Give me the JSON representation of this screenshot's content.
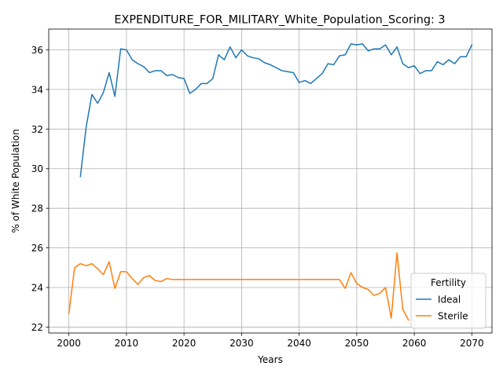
{
  "chart_data": {
    "type": "line",
    "title": "EXPENDITURE_FOR_MILITARY_White_Population_Scoring: 3",
    "xlabel": "Years",
    "ylabel": "% of White Population",
    "xlim": [
      1996.5,
      2073.5
    ],
    "ylim": [
      21.7,
      37.05
    ],
    "x_ticks": [
      2000,
      2010,
      2020,
      2030,
      2040,
      2050,
      2060,
      2070
    ],
    "y_ticks": [
      22,
      24,
      26,
      28,
      30,
      32,
      34,
      36
    ],
    "grid": true,
    "legend": {
      "title": "Fertility",
      "placement": "lower-right"
    },
    "series": [
      {
        "name": "Ideal",
        "color": "#1f77b4",
        "x": [
          2002,
          2003,
          2004,
          2005,
          2006,
          2007,
          2008,
          2009,
          2010,
          2011,
          2012,
          2013,
          2014,
          2015,
          2016,
          2017,
          2018,
          2019,
          2020,
          2021,
          2022,
          2023,
          2024,
          2025,
          2026,
          2027,
          2028,
          2029,
          2030,
          2031,
          2032,
          2033,
          2034,
          2035,
          2036,
          2037,
          2038,
          2039,
          2040,
          2041,
          2042,
          2043,
          2044,
          2045,
          2046,
          2047,
          2048,
          2049,
          2050,
          2051,
          2052,
          2053,
          2054,
          2055,
          2056,
          2057,
          2058,
          2059,
          2060,
          2061,
          2062,
          2063,
          2064,
          2065,
          2066,
          2067,
          2068,
          2069,
          2070
        ],
        "values": [
          29.6,
          32.1,
          33.75,
          33.3,
          33.85,
          34.85,
          33.65,
          36.05,
          36.0,
          35.5,
          35.3,
          35.15,
          34.85,
          34.95,
          34.95,
          34.7,
          34.75,
          34.6,
          34.55,
          33.8,
          34.0,
          34.3,
          34.3,
          34.55,
          35.75,
          35.5,
          36.15,
          35.6,
          36.0,
          35.7,
          35.6,
          35.55,
          35.35,
          35.25,
          35.1,
          34.95,
          34.9,
          34.85,
          34.35,
          34.45,
          34.3,
          34.55,
          34.8,
          35.3,
          35.25,
          35.7,
          35.75,
          36.3,
          36.25,
          36.3,
          35.95,
          36.05,
          36.05,
          36.25,
          35.75,
          36.15,
          35.3,
          35.1,
          35.2,
          34.8,
          34.95,
          34.95,
          35.4,
          35.25,
          35.5,
          35.3,
          35.65,
          35.65,
          36.25
        ]
      },
      {
        "name": "Sterile",
        "color": "#ff7f0e",
        "x": [
          2000,
          2001,
          2002,
          2003,
          2004,
          2005,
          2006,
          2007,
          2008,
          2009,
          2010,
          2011,
          2012,
          2013,
          2014,
          2015,
          2016,
          2017,
          2018,
          2019,
          2020,
          2021,
          2022,
          2023,
          2024,
          2025,
          2026,
          2027,
          2028,
          2029,
          2030,
          2031,
          2032,
          2033,
          2034,
          2035,
          2036,
          2037,
          2038,
          2039,
          2040,
          2041,
          2042,
          2043,
          2044,
          2045,
          2046,
          2047,
          2048,
          2049,
          2050,
          2051,
          2052,
          2053,
          2054,
          2055,
          2056,
          2057,
          2058,
          2059
        ],
        "values": [
          22.7,
          25.0,
          25.2,
          25.1,
          25.2,
          24.95,
          24.65,
          25.3,
          23.95,
          24.8,
          24.8,
          24.45,
          24.15,
          24.5,
          24.6,
          24.35,
          24.3,
          24.45,
          24.4,
          24.4,
          24.4,
          24.4,
          24.4,
          24.4,
          24.4,
          24.4,
          24.4,
          24.4,
          24.4,
          24.4,
          24.4,
          24.4,
          24.4,
          24.4,
          24.4,
          24.4,
          24.4,
          24.4,
          24.4,
          24.4,
          24.4,
          24.4,
          24.4,
          24.4,
          24.4,
          24.4,
          24.4,
          24.4,
          23.95,
          24.75,
          24.2,
          24.0,
          23.9,
          23.6,
          23.7,
          24.0,
          22.45,
          25.75,
          22.9,
          22.35
        ]
      }
    ]
  }
}
